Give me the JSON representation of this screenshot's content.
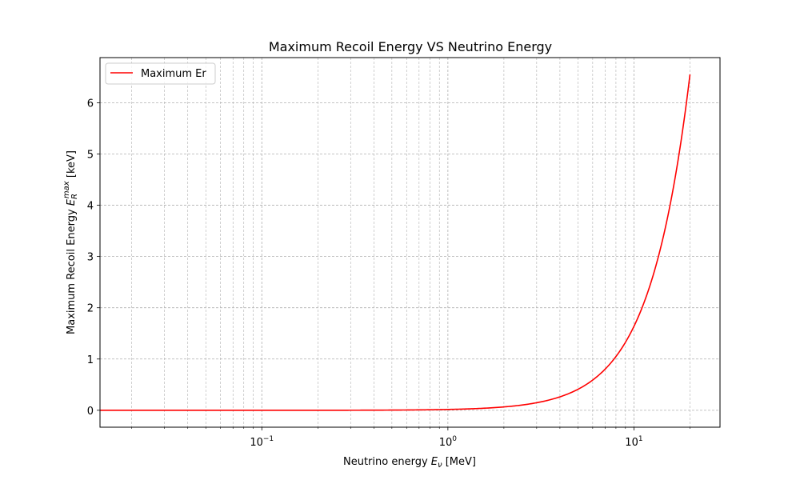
{
  "chart_data": {
    "type": "line",
    "title": "Maximum Recoil Energy VS Neutrino Energy",
    "xlabel": {
      "main": "Neutrino energy ",
      "var": "E",
      "sub": "ν",
      "unit": " [MeV]"
    },
    "ylabel": {
      "main": "Maximum Recoil Energy ",
      "var": "E",
      "sub": "R",
      "sup": "max",
      "unit": " [keV]"
    },
    "xscale": "log",
    "xlim": [
      0.0135,
      29.0
    ],
    "ylim": [
      -0.33,
      6.88
    ],
    "grid": true,
    "legend": {
      "placement": "top-left",
      "entries": [
        "Maximum Er"
      ]
    },
    "x_ticks": [
      {
        "base": "10",
        "exp": "−1",
        "value": 0.1
      },
      {
        "base": "10",
        "exp": "0",
        "value": 1
      },
      {
        "base": "10",
        "exp": "1",
        "value": 10
      }
    ],
    "y_ticks": [
      "0",
      "1",
      "2",
      "3",
      "4",
      "5",
      "6"
    ],
    "series": [
      {
        "name": "Maximum Er",
        "color": "#ff0000",
        "x_range": [
          0.0135,
          20.0
        ],
        "model": "power",
        "exponent": 2,
        "coefficient": 0.016375
      }
    ]
  }
}
